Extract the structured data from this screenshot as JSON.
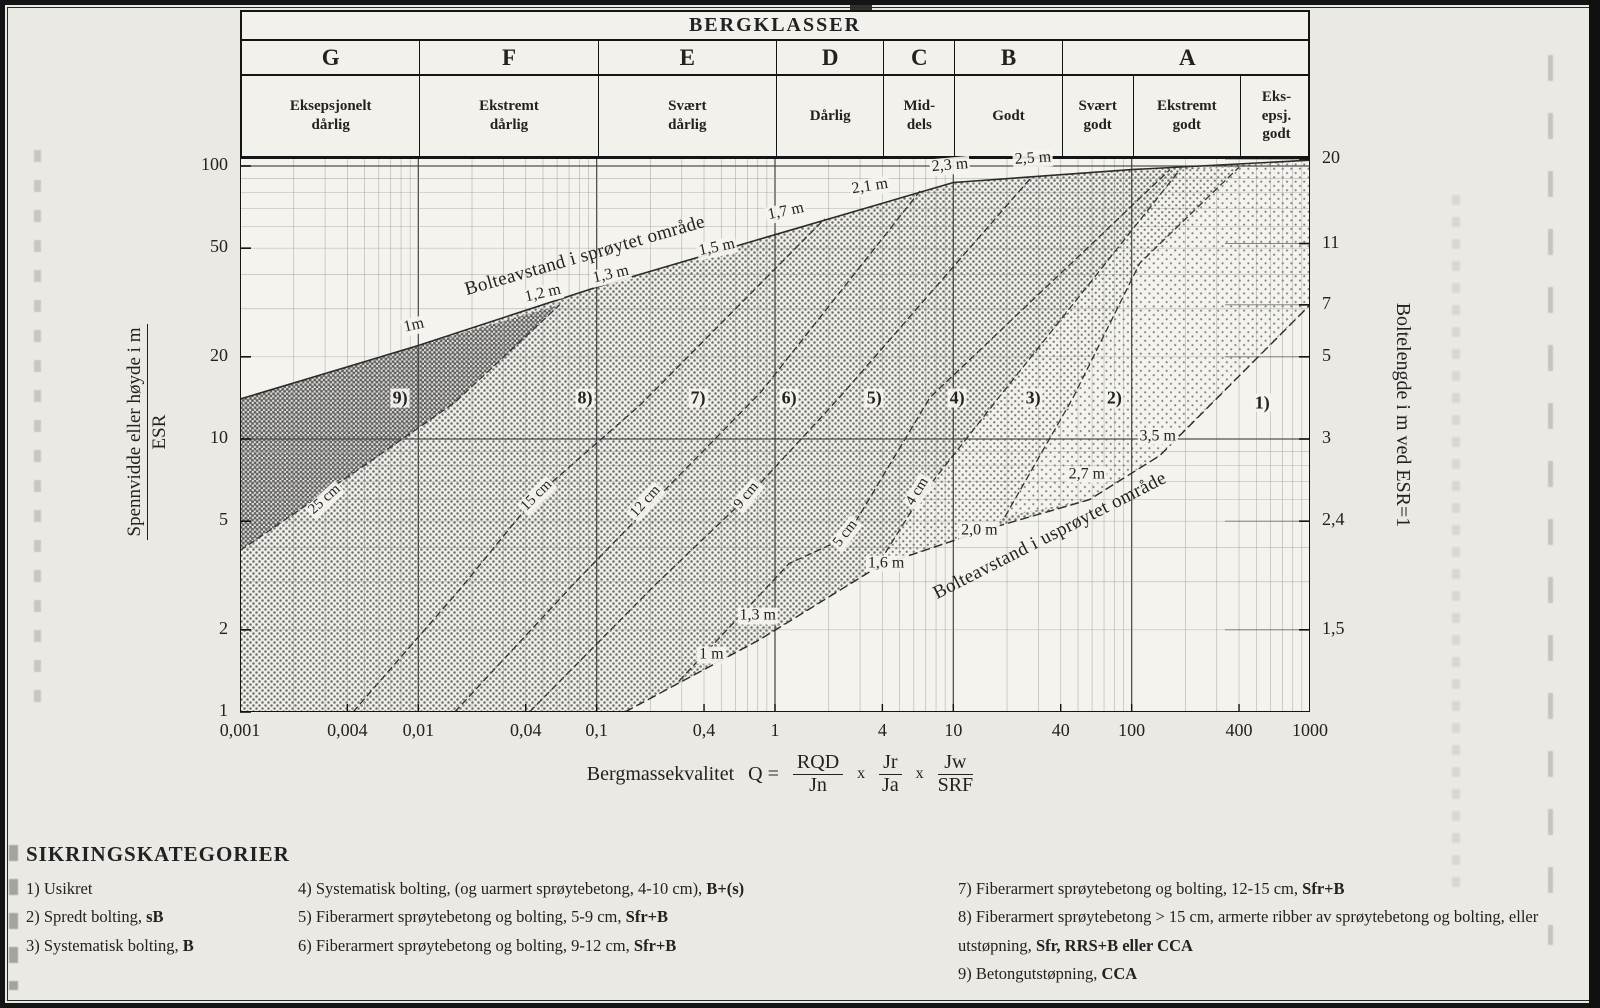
{
  "bergklasser": {
    "title": "BERGKLASSER",
    "letters": [
      {
        "label": "G",
        "from": 0.001,
        "to": 0.01
      },
      {
        "label": "F",
        "from": 0.01,
        "to": 0.1
      },
      {
        "label": "E",
        "from": 0.1,
        "to": 1
      },
      {
        "label": "D",
        "from": 1,
        "to": 4
      },
      {
        "label": "C",
        "from": 4,
        "to": 10
      },
      {
        "label": "B",
        "from": 10,
        "to": 40
      },
      {
        "label": "A",
        "from": 40,
        "to": 1000
      }
    ],
    "descriptions": [
      {
        "lines": [
          "Eksepsjonelt",
          "dårlig"
        ],
        "from": 0.001,
        "to": 0.01
      },
      {
        "lines": [
          "Ekstremt",
          "dårlig"
        ],
        "from": 0.01,
        "to": 0.1
      },
      {
        "lines": [
          "Svært",
          "dårlig"
        ],
        "from": 0.1,
        "to": 1
      },
      {
        "lines": [
          "Dårlig"
        ],
        "from": 1,
        "to": 4
      },
      {
        "lines": [
          "Mid-",
          "dels"
        ],
        "from": 4,
        "to": 10
      },
      {
        "lines": [
          "Godt"
        ],
        "from": 10,
        "to": 40
      },
      {
        "lines": [
          "Svært",
          "godt"
        ],
        "from": 40,
        "to": 100
      },
      {
        "lines": [
          "Ekstremt",
          "godt"
        ],
        "from": 100,
        "to": 400
      },
      {
        "lines": [
          "Eks-",
          "epsj.",
          "godt"
        ],
        "from": 400,
        "to": 1000
      }
    ]
  },
  "axes": {
    "x": {
      "title_prefix": "Bergmassekvalitet",
      "formula": {
        "lhs": "Q",
        "eq": "=",
        "times": "x",
        "fractions": [
          {
            "num": "RQD",
            "den": "Jn"
          },
          {
            "num": "Jr",
            "den": "Ja"
          },
          {
            "num": "Jw",
            "den": "SRF"
          }
        ]
      },
      "ticks": [
        {
          "label": "0,001",
          "q": 0.001
        },
        {
          "label": "0,004",
          "q": 0.004
        },
        {
          "label": "0,01",
          "q": 0.01
        },
        {
          "label": "0,04",
          "q": 0.04
        },
        {
          "label": "0,1",
          "q": 0.1
        },
        {
          "label": "0,4",
          "q": 0.4
        },
        {
          "label": "1",
          "q": 1
        },
        {
          "label": "4",
          "q": 4
        },
        {
          "label": "10",
          "q": 10
        },
        {
          "label": "40",
          "q": 40
        },
        {
          "label": "100",
          "q": 100
        },
        {
          "label": "400",
          "q": 400
        },
        {
          "label": "1000",
          "q": 1000
        }
      ]
    },
    "y_left": {
      "title_numerator": "Spennvidde eller høyde i m",
      "title_denominator": "ESR",
      "ticks": [
        {
          "label": "100",
          "s": 100
        },
        {
          "label": "50",
          "s": 50
        },
        {
          "label": "20",
          "s": 20
        },
        {
          "label": "10",
          "s": 10
        },
        {
          "label": "5",
          "s": 5
        },
        {
          "label": "2",
          "s": 2
        },
        {
          "label": "1",
          "s": 1
        }
      ]
    },
    "y_right": {
      "title": "Boltelengde i m ved ESR=1",
      "ticks": [
        {
          "label": "20",
          "s": 106
        },
        {
          "label": "11",
          "s": 52
        },
        {
          "label": "7",
          "s": 31
        },
        {
          "label": "5",
          "s": 20
        },
        {
          "label": "3",
          "s": 10
        },
        {
          "label": "2,4",
          "s": 5
        },
        {
          "label": "1,5",
          "s": 2
        }
      ]
    }
  },
  "chart_data": {
    "type": "area",
    "x_scale": "log",
    "x_range": [
      0.001,
      1000
    ],
    "y_scale": "log",
    "y_range": [
      1,
      100
    ],
    "grid": "log-minor",
    "envelope_sprayed": {
      "name": "Bolteavstand i sprøytet område",
      "points": [
        [
          0.001,
          14
        ],
        [
          0.01,
          22
        ],
        [
          0.1,
          36
        ],
        [
          1,
          56
        ],
        [
          10,
          87
        ],
        [
          100,
          97
        ],
        [
          1000,
          105
        ]
      ]
    },
    "envelope_unsprayed": {
      "name": "Bolteavstand i usprøytet område",
      "points": [
        [
          0.144,
          1
        ],
        [
          0.82,
          1.84
        ],
        [
          3.9,
          3.45
        ],
        [
          16,
          4.7
        ],
        [
          58,
          6
        ],
        [
          144,
          8.7
        ],
        [
          1000,
          31
        ]
      ]
    },
    "boundaries": [
      {
        "between": [
          9,
          8
        ],
        "points": [
          [
            0.001,
            3.9
          ],
          [
            0.0047,
            7.8
          ],
          [
            0.016,
            13.6
          ],
          [
            0.062,
            31
          ]
        ]
      },
      {
        "between": [
          8,
          7
        ],
        "points": [
          [
            0.0043,
            1
          ],
          [
            0.017,
            2.8
          ],
          [
            0.046,
            6.2
          ],
          [
            0.175,
            13.3
          ],
          [
            1.9,
            64
          ]
        ]
      },
      {
        "between": [
          7,
          6
        ],
        "points": [
          [
            0.016,
            1
          ],
          [
            0.08,
            3.1
          ],
          [
            0.23,
            6.3
          ],
          [
            0.83,
            14.8
          ],
          [
            6.5,
            81
          ]
        ]
      },
      {
        "between": [
          6,
          5
        ],
        "points": [
          [
            0.042,
            1
          ],
          [
            0.21,
            2.9
          ],
          [
            0.73,
            6.3
          ],
          [
            2.3,
            14.2
          ],
          [
            27,
            90
          ]
        ]
      },
      {
        "between": [
          5,
          4
        ],
        "points": [
          [
            0.29,
            1.3
          ],
          [
            1.2,
            3.5
          ],
          [
            2.5,
            4.35
          ],
          [
            7.4,
            14.2
          ],
          [
            164,
            97
          ]
        ]
      },
      {
        "between": [
          4,
          3
        ],
        "points": [
          [
            3.6,
            3.3
          ],
          [
            6.5,
            6.1
          ],
          [
            18,
            14.2
          ],
          [
            187,
            97
          ]
        ]
      },
      {
        "between": [
          3,
          2
        ],
        "points": [
          [
            19.5,
            5.2
          ],
          [
            47,
            14.2
          ],
          [
            111,
            44
          ],
          [
            400,
            99
          ]
        ]
      }
    ],
    "regions": [
      {
        "name": "zones-4-8",
        "density": "medium",
        "points": [
          [
            0.001,
            14
          ],
          [
            0.01,
            22
          ],
          [
            0.1,
            36
          ],
          [
            1,
            56
          ],
          [
            10,
            87
          ],
          [
            100,
            97
          ],
          [
            1000,
            105
          ],
          [
            1000,
            31
          ],
          [
            144,
            8.7
          ],
          [
            58,
            6
          ],
          [
            16,
            4.7
          ],
          [
            3.9,
            3.45
          ],
          [
            0.82,
            1.84
          ],
          [
            0.144,
            1
          ],
          [
            0.001,
            1
          ]
        ]
      },
      {
        "name": "zone-3",
        "density": "light",
        "points": [
          [
            187,
            97
          ],
          [
            400,
            99
          ],
          [
            111,
            44
          ],
          [
            47,
            14.2
          ],
          [
            19.5,
            5.2
          ],
          [
            16,
            4.7
          ],
          [
            3.9,
            3.45
          ],
          [
            3.6,
            3.3
          ],
          [
            6.5,
            6.1
          ],
          [
            18,
            14.2
          ]
        ]
      },
      {
        "name": "zone-2",
        "density": "sparse",
        "points": [
          [
            400,
            99
          ],
          [
            1000,
            105
          ],
          [
            1000,
            31
          ],
          [
            144,
            8.7
          ],
          [
            58,
            6
          ],
          [
            19.5,
            5.2
          ],
          [
            47,
            14.2
          ],
          [
            111,
            44
          ]
        ]
      },
      {
        "name": "zone-9",
        "density": "dense",
        "points": [
          [
            0.001,
            14
          ],
          [
            0.01,
            22
          ],
          [
            0.062,
            31
          ],
          [
            0.016,
            13.6
          ],
          [
            0.0047,
            7.8
          ],
          [
            0.001,
            3.9
          ]
        ]
      }
    ],
    "zone_labels": [
      {
        "text": "9)",
        "q": 0.0079,
        "s": 14.1
      },
      {
        "text": "8)",
        "q": 0.086,
        "s": 14.1
      },
      {
        "text": "7)",
        "q": 0.37,
        "s": 14.1
      },
      {
        "text": "6)",
        "q": 1.2,
        "s": 14.1
      },
      {
        "text": "5)",
        "q": 3.6,
        "s": 14.1
      },
      {
        "text": "4)",
        "q": 10.5,
        "s": 14.1
      },
      {
        "text": "3)",
        "q": 28,
        "s": 14.1
      },
      {
        "text": "2)",
        "q": 80,
        "s": 14.1
      },
      {
        "text": "1)",
        "q": 540,
        "s": 13.6
      }
    ],
    "spacing_labels_sprayed": [
      {
        "text": "1m",
        "q": 0.0095,
        "s": 26,
        "rot": -13
      },
      {
        "text": "1,2 m",
        "q": 0.05,
        "s": 34,
        "rot": -13
      },
      {
        "text": "1,3 m",
        "q": 0.12,
        "s": 40,
        "rot": -13
      },
      {
        "text": "1,5 m",
        "q": 0.47,
        "s": 50,
        "rot": -12
      },
      {
        "text": "1,7 m",
        "q": 1.15,
        "s": 68,
        "rot": -12
      },
      {
        "text": "2,1 m",
        "q": 3.4,
        "s": 84,
        "rot": -9
      },
      {
        "text": "2,3 m",
        "q": 9.6,
        "s": 100,
        "rot": -5
      },
      {
        "text": "2,5 m",
        "q": 28,
        "s": 106,
        "rot": -4
      }
    ],
    "spacing_labels_unsprayed": [
      {
        "text": "1 m",
        "q": 0.44,
        "s": 1.62,
        "rot": 0
      },
      {
        "text": "1,3 m",
        "q": 0.8,
        "s": 2.25,
        "rot": 0
      },
      {
        "text": "1,6 m",
        "q": 4.2,
        "s": 3.5,
        "rot": 0
      },
      {
        "text": "2,0 m",
        "q": 14,
        "s": 4.6,
        "rot": 0
      },
      {
        "text": "2,7 m",
        "q": 56,
        "s": 7.4,
        "rot": 0
      },
      {
        "text": "3,5 m",
        "q": 140,
        "s": 10.2,
        "rot": 0
      }
    ],
    "thickness_labels": [
      {
        "text": "25 cm",
        "q": 0.003,
        "s": 6.0,
        "rot": -42
      },
      {
        "text": "15 cm",
        "q": 0.046,
        "s": 6.2,
        "rot": -45
      },
      {
        "text": "12 cm",
        "q": 0.19,
        "s": 5.9,
        "rot": -48
      },
      {
        "text": "9 cm",
        "q": 0.7,
        "s": 6.2,
        "rot": -50
      },
      {
        "text": "5 cm",
        "q": 2.5,
        "s": 4.5,
        "rot": -52
      },
      {
        "text": "4 cm",
        "q": 6.3,
        "s": 6.4,
        "rot": -58
      }
    ],
    "area_texts": [
      {
        "text": "Bolteavstand i sprøytet område",
        "q": 0.086,
        "s": 47,
        "rot": -16
      },
      {
        "text": "Bolteavstand i usprøytet område",
        "q": 35,
        "s": 4.4,
        "rot": -27
      }
    ]
  },
  "legend": {
    "title": "SIKRINGSKATEGORIER",
    "columns": [
      {
        "items": [
          {
            "num": "1)",
            "text": "Usikret",
            "code": ""
          },
          {
            "num": "2)",
            "text": "Spredt bolting,",
            "code": "sB"
          },
          {
            "num": "3)",
            "text": "Systematisk bolting,",
            "code": "B"
          }
        ]
      },
      {
        "items": [
          {
            "num": "4)",
            "text": "Systematisk bolting, (og uarmert sprøytebetong, 4-10 cm),",
            "code": "B+(s)"
          },
          {
            "num": "5)",
            "text": "Fiberarmert sprøytebetong og bolting, 5-9 cm,",
            "code": "Sfr+B"
          },
          {
            "num": "6)",
            "text": "Fiberarmert sprøytebetong og bolting, 9-12 cm,",
            "code": "Sfr+B"
          }
        ]
      },
      {
        "items": [
          {
            "num": "7)",
            "text": "Fiberarmert sprøytebetong og bolting, 12-15 cm,",
            "code": "Sfr+B"
          },
          {
            "num": "8)",
            "text": "Fiberarmert sprøytebetong > 15 cm, armerte ribber av sprøytebetong og bolting, eller utstøpning,",
            "code": "Sfr, RRS+B eller CCA"
          },
          {
            "num": "9)",
            "text": "Betongutstøpning,",
            "code": "CCA"
          }
        ]
      }
    ]
  }
}
